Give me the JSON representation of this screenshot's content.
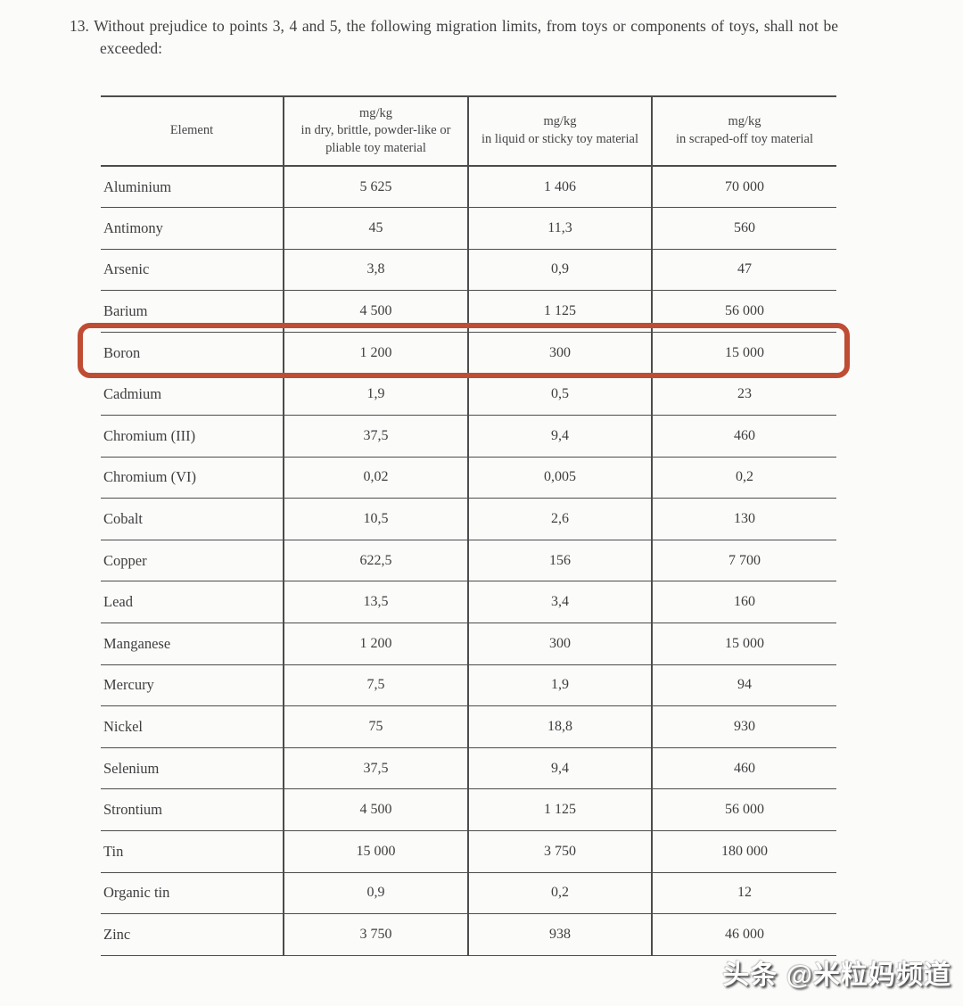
{
  "paragraph": {
    "number": "13.",
    "text": "Without prejudice to points 3, 4 and 5, the following migration limits, from toys or components of toys, shall not be exceeded:"
  },
  "table": {
    "columns": [
      {
        "label": "Element"
      },
      {
        "unit": "mg/kg",
        "desc": "in dry, brittle, powder-like or\npliable toy material"
      },
      {
        "unit": "mg/kg",
        "desc": "in liquid or sticky toy material"
      },
      {
        "unit": "mg/kg",
        "desc": "in scraped-off toy material"
      }
    ],
    "rows": [
      {
        "element": "Aluminium",
        "values": [
          "5 625",
          "1 406",
          "70 000"
        ],
        "highlighted": false
      },
      {
        "element": "Antimony",
        "values": [
          "45",
          "11,3",
          "560"
        ],
        "highlighted": false
      },
      {
        "element": "Arsenic",
        "values": [
          "3,8",
          "0,9",
          "47"
        ],
        "highlighted": false
      },
      {
        "element": "Barium",
        "values": [
          "4 500",
          "1 125",
          "56 000"
        ],
        "highlighted": false
      },
      {
        "element": "Boron",
        "values": [
          "1 200",
          "300",
          "15 000"
        ],
        "highlighted": true
      },
      {
        "element": "Cadmium",
        "values": [
          "1,9",
          "0,5",
          "23"
        ],
        "highlighted": false
      },
      {
        "element": "Chromium (III)",
        "values": [
          "37,5",
          "9,4",
          "460"
        ],
        "highlighted": false
      },
      {
        "element": "Chromium (VI)",
        "values": [
          "0,02",
          "0,005",
          "0,2"
        ],
        "highlighted": false
      },
      {
        "element": "Cobalt",
        "values": [
          "10,5",
          "2,6",
          "130"
        ],
        "highlighted": false
      },
      {
        "element": "Copper",
        "values": [
          "622,5",
          "156",
          "7 700"
        ],
        "highlighted": false
      },
      {
        "element": "Lead",
        "values": [
          "13,5",
          "3,4",
          "160"
        ],
        "highlighted": false
      },
      {
        "element": "Manganese",
        "values": [
          "1 200",
          "300",
          "15 000"
        ],
        "highlighted": false
      },
      {
        "element": "Mercury",
        "values": [
          "7,5",
          "1,9",
          "94"
        ],
        "highlighted": false
      },
      {
        "element": "Nickel",
        "values": [
          "75",
          "18,8",
          "930"
        ],
        "highlighted": false
      },
      {
        "element": "Selenium",
        "values": [
          "37,5",
          "9,4",
          "460"
        ],
        "highlighted": false
      },
      {
        "element": "Strontium",
        "values": [
          "4 500",
          "1 125",
          "56 000"
        ],
        "highlighted": false
      },
      {
        "element": "Tin",
        "values": [
          "15 000",
          "3 750",
          "180 000"
        ],
        "highlighted": false
      },
      {
        "element": "Organic tin",
        "values": [
          "0,9",
          "0,2",
          "12"
        ],
        "highlighted": false
      },
      {
        "element": "Zinc",
        "values": [
          "3 750",
          "938",
          "46 000"
        ],
        "highlighted": false
      }
    ]
  },
  "highlight": {
    "color": "#bf4d33",
    "row_element": "Boron"
  },
  "watermark": {
    "text": "头条 @米粒妈频道"
  }
}
